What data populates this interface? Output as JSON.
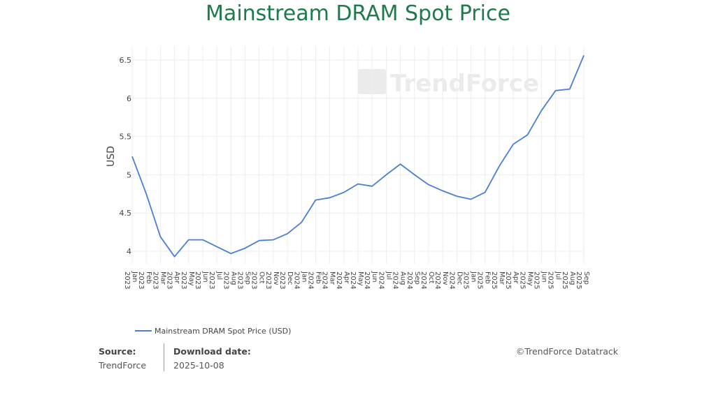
{
  "title": "Mainstream DRAM Spot Price",
  "watermark": "TrendForce",
  "footer": {
    "source_label": "Source:",
    "source_value": "TrendForce",
    "date_label": "Download date:",
    "date_value": "2025-10-08",
    "copyright": "©TrendForce Datatrack"
  },
  "colors": {
    "line": "#4a7fd4",
    "title": "#1f7a4c",
    "grid": "#eeeeee"
  },
  "chart_data": {
    "type": "line",
    "title": "Mainstream DRAM Spot Price",
    "xlabel": "",
    "ylabel": "USD",
    "ylim": [
      3.8,
      6.7
    ],
    "yticks": [
      4,
      4.5,
      5,
      5.5,
      6,
      6.5
    ],
    "ytick_labels": [
      "4",
      "4.5",
      "5",
      "5.5",
      "6",
      "6.5"
    ],
    "grid": true,
    "legend_position": "bottom-left",
    "categories": [
      "Jan 2023",
      "Feb 2023",
      "Mar 2023",
      "Apr 2023",
      "May 2023",
      "Jun 2023",
      "Jul 2023",
      "Aug 2023",
      "Sep 2023",
      "Oct 2023",
      "Nov 2023",
      "Dec 2023",
      "Jan 2024",
      "Feb 2024",
      "Mar 2024",
      "Apr 2024",
      "May 2024",
      "Jun 2024",
      "Jul 2024",
      "Aug 2024",
      "Sep 2024",
      "Oct 2024",
      "Nov 2024",
      "Dec 2024",
      "Jan 2025",
      "Feb 2025",
      "Mar 2025",
      "Apr 2025",
      "May 2025",
      "Jun 2025",
      "Jul 2025",
      "Aug 2025",
      "Sep 2025"
    ],
    "series": [
      {
        "name": "Mainstream DRAM Spot Price (USD)",
        "values": [
          5.24,
          4.75,
          4.19,
          3.93,
          4.15,
          4.15,
          4.06,
          3.97,
          4.04,
          4.14,
          4.15,
          4.23,
          4.38,
          4.67,
          4.7,
          4.77,
          4.88,
          4.85,
          5.0,
          5.14,
          5.0,
          4.87,
          4.79,
          4.72,
          4.68,
          4.77,
          5.11,
          5.4,
          5.52,
          5.84,
          6.1,
          6.12,
          6.56
        ]
      }
    ]
  }
}
